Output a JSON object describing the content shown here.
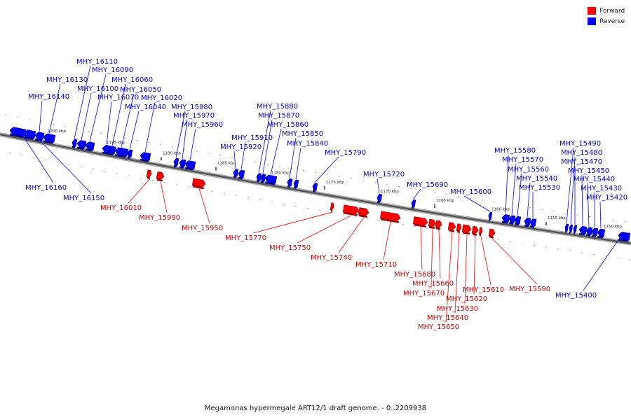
{
  "legend": {
    "forward_label": "Forward",
    "reverse_label": "Reverse",
    "forward_color": "#ff0000",
    "reverse_color": "#0000ff"
  },
  "caption": "Megamonas hypermegale ART12/1 draft genome. - 0..2209938",
  "axis_ticks": [
    "1200 kbp",
    "1195 kbp",
    "1190 kbp",
    "1185 kbp",
    "1180 kbp",
    "1175 kbp",
    "1170 kbp",
    "1165 kbp",
    "1160 kbp",
    "1155 kbp",
    "1150 kbp"
  ],
  "genes": [
    {
      "name": "MHY_16160",
      "strand": "reverse"
    },
    {
      "name": "MHY_16150",
      "strand": "reverse"
    },
    {
      "name": "MHY_16140",
      "strand": "reverse"
    },
    {
      "name": "MHY_16130",
      "strand": "reverse"
    },
    {
      "name": "MHY_16110",
      "strand": "reverse"
    },
    {
      "name": "MHY_16100",
      "strand": "reverse"
    },
    {
      "name": "MHY_16090",
      "strand": "reverse"
    },
    {
      "name": "MHY_16070",
      "strand": "reverse"
    },
    {
      "name": "MHY_16060",
      "strand": "reverse"
    },
    {
      "name": "MHY_16050",
      "strand": "reverse"
    },
    {
      "name": "MHY_16040",
      "strand": "reverse"
    },
    {
      "name": "MHY_16020",
      "strand": "reverse"
    },
    {
      "name": "MHY_16010",
      "strand": "forward"
    },
    {
      "name": "MHY_15990",
      "strand": "forward"
    },
    {
      "name": "MHY_15980",
      "strand": "reverse"
    },
    {
      "name": "MHY_15970",
      "strand": "reverse"
    },
    {
      "name": "MHY_15960",
      "strand": "reverse"
    },
    {
      "name": "MHY_15950",
      "strand": "forward"
    },
    {
      "name": "MHY_15920",
      "strand": "reverse"
    },
    {
      "name": "MHY_15910",
      "strand": "reverse"
    },
    {
      "name": "MHY_15880",
      "strand": "reverse"
    },
    {
      "name": "MHY_15870",
      "strand": "reverse"
    },
    {
      "name": "MHY_15860",
      "strand": "reverse"
    },
    {
      "name": "MHY_15850",
      "strand": "reverse"
    },
    {
      "name": "MHY_15840",
      "strand": "reverse"
    },
    {
      "name": "MHY_15790",
      "strand": "reverse"
    },
    {
      "name": "MHY_15770",
      "strand": "forward"
    },
    {
      "name": "MHY_15750",
      "strand": "forward"
    },
    {
      "name": "MHY_15740",
      "strand": "forward"
    },
    {
      "name": "MHY_15720",
      "strand": "reverse"
    },
    {
      "name": "MHY_15710",
      "strand": "forward"
    },
    {
      "name": "MHY_15690",
      "strand": "reverse"
    },
    {
      "name": "MHY_15680",
      "strand": "forward"
    },
    {
      "name": "MHY_15670",
      "strand": "forward"
    },
    {
      "name": "MHY_15660",
      "strand": "forward"
    },
    {
      "name": "MHY_15650",
      "strand": "forward"
    },
    {
      "name": "MHY_15640",
      "strand": "forward"
    },
    {
      "name": "MHY_15630",
      "strand": "forward"
    },
    {
      "name": "MHY_15620",
      "strand": "forward"
    },
    {
      "name": "MHY_15610",
      "strand": "forward"
    },
    {
      "name": "MHY_15600",
      "strand": "reverse"
    },
    {
      "name": "MHY_15590",
      "strand": "forward"
    },
    {
      "name": "MHY_15580",
      "strand": "reverse"
    },
    {
      "name": "MHY_15570",
      "strand": "reverse"
    },
    {
      "name": "MHY_15560",
      "strand": "reverse"
    },
    {
      "name": "MHY_15540",
      "strand": "reverse"
    },
    {
      "name": "MHY_15530",
      "strand": "reverse"
    },
    {
      "name": "MHY_15490",
      "strand": "reverse"
    },
    {
      "name": "MHY_15480",
      "strand": "reverse"
    },
    {
      "name": "MHY_15470",
      "strand": "reverse"
    },
    {
      "name": "MHY_15450",
      "strand": "reverse"
    },
    {
      "name": "MHY_15440",
      "strand": "reverse"
    },
    {
      "name": "MHY_15430",
      "strand": "reverse"
    },
    {
      "name": "MHY_15420",
      "strand": "reverse"
    },
    {
      "name": "MHY_15400",
      "strand": "reverse"
    }
  ]
}
